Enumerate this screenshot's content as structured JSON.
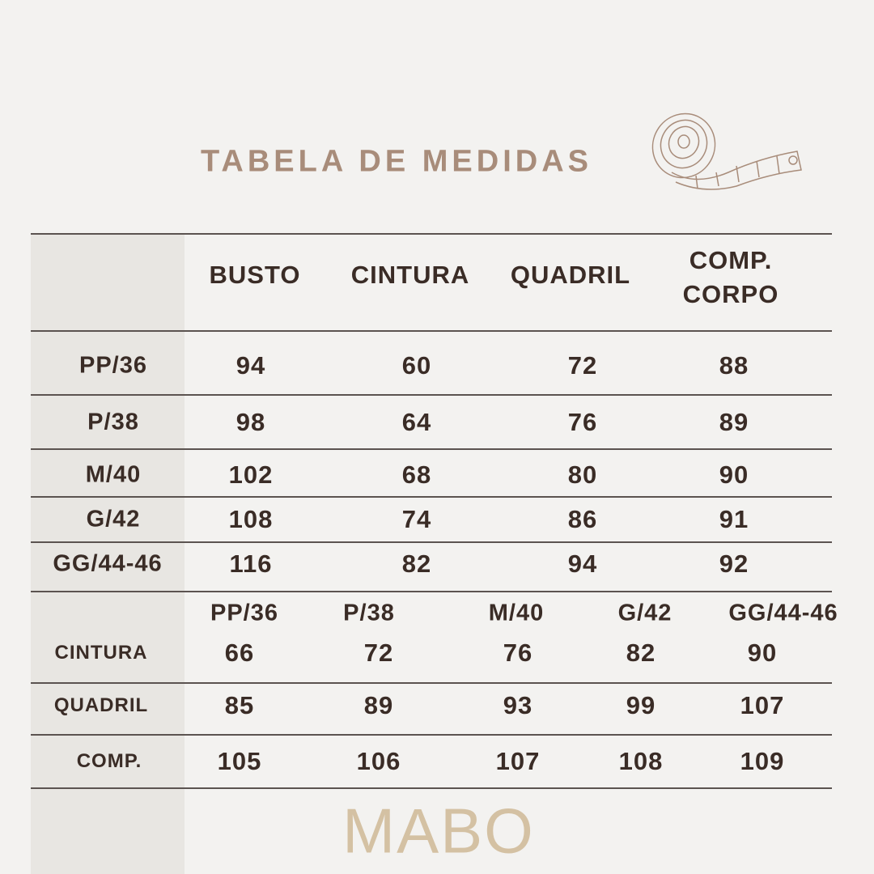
{
  "title": "TABELA DE MEDIDAS",
  "brand": "MABO",
  "colors": {
    "title": "#a88c7a",
    "text": "#3a2c26",
    "brand": "#d4c1a3",
    "background": "#f3f2f0",
    "label_column": "#e8e6e2"
  },
  "icons": [
    "tape-measure-icon"
  ],
  "top_table": {
    "headers": [
      "BUSTO",
      "CINTURA",
      "QUADRIL",
      "COMP. CORPO"
    ],
    "rows": [
      {
        "size": "PP/36",
        "values": [
          "94",
          "60",
          "72",
          "88"
        ]
      },
      {
        "size": "P/38",
        "values": [
          "98",
          "64",
          "76",
          "89"
        ]
      },
      {
        "size": "M/40",
        "values": [
          "102",
          "68",
          "80",
          "90"
        ]
      },
      {
        "size": "G/42",
        "values": [
          "108",
          "74",
          "86",
          "91"
        ]
      },
      {
        "size": "GG/44-46",
        "values": [
          "116",
          "82",
          "94",
          "92"
        ]
      }
    ]
  },
  "bottom_table": {
    "headers": [
      "PP/36",
      "P/38",
      "M/40",
      "G/42",
      "GG/44-46"
    ],
    "rows": [
      {
        "label": "CINTURA",
        "values": [
          "66",
          "72",
          "76",
          "82",
          "90"
        ]
      },
      {
        "label": "QUADRIL",
        "values": [
          "85",
          "89",
          "93",
          "99",
          "107"
        ]
      },
      {
        "label": "COMP.",
        "values": [
          "105",
          "106",
          "107",
          "108",
          "109"
        ]
      }
    ]
  }
}
